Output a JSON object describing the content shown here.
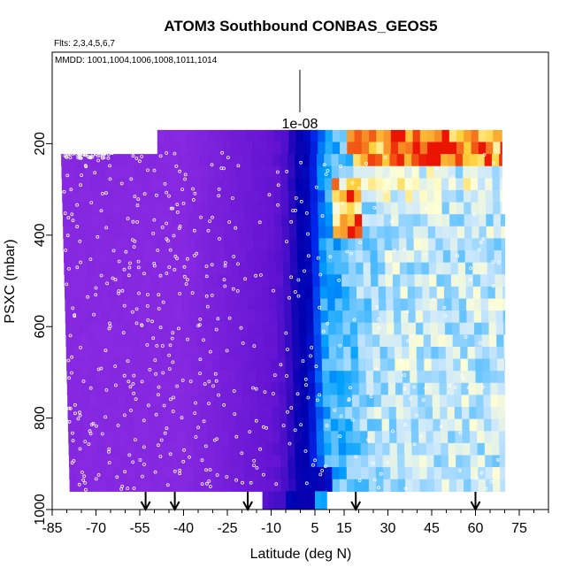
{
  "chart_data": {
    "type": "heatmap",
    "title": "ATOM3 Southbound CONBAS_GEOS5",
    "flights_note": "Flts: 2,3,4,5,6,7",
    "dates_note": "MMDD: 1001,1004,1006,1008,1011,1014",
    "xlabel": "Latitude (deg N)",
    "ylabel": "PSXC (mbar)",
    "xlim": [
      -85,
      85
    ],
    "ylim": [
      1000,
      0
    ],
    "x_ticks": [
      -85,
      -70,
      -55,
      -40,
      -25,
      -10,
      5,
      15,
      30,
      45,
      60,
      75
    ],
    "x_tick_labels": [
      "-85",
      "-70",
      "-55",
      "-40",
      "-25",
      "-10",
      "5",
      "15",
      "30",
      "45",
      "60",
      "75"
    ],
    "y_ticks": [
      200,
      400,
      600,
      800,
      1000
    ],
    "y_tick_labels": [
      "200",
      "400",
      "600",
      "800",
      "1000"
    ],
    "scale_label": "1e-08",
    "arrow_latitudes": [
      -53,
      -43,
      -18,
      19,
      60
    ],
    "colors": {
      "low": "#8a2be2",
      "mid": "#0000b4",
      "high_blue": "#00bfff",
      "peak": "#ff2000"
    }
  }
}
